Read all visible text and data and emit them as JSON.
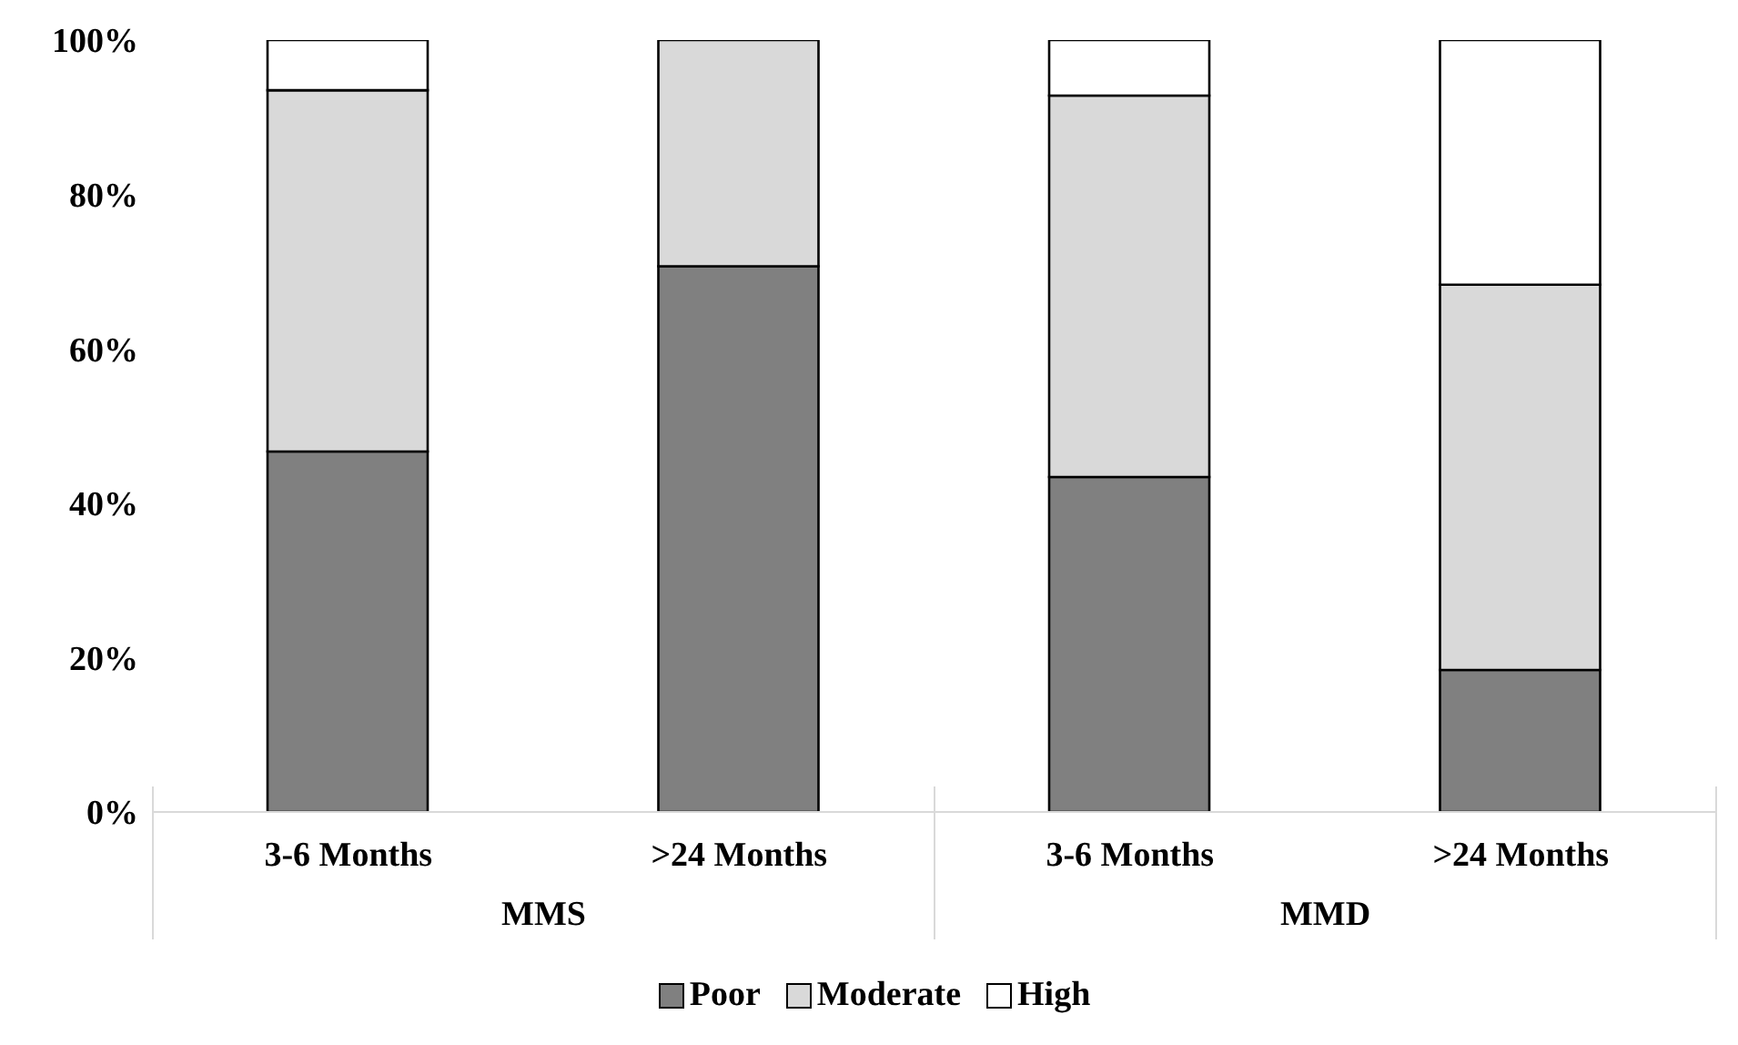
{
  "chart_data": {
    "type": "bar",
    "stacked": true,
    "categories": [
      "3-6 Months",
      ">24 Months",
      "3-6 Months",
      ">24 Months"
    ],
    "series": [
      {
        "name": "Poor",
        "color": "#808080",
        "values": [
          46.7,
          70.7,
          43.4,
          18.4
        ]
      },
      {
        "name": "Moderate",
        "color": "#d9d9d9",
        "values": [
          46.8,
          29.3,
          49.4,
          49.9
        ]
      },
      {
        "name": "High",
        "color": "#ffffff",
        "values": [
          6.5,
          0,
          7.2,
          31.7
        ]
      }
    ],
    "ylim": [
      0,
      100
    ],
    "yticks": [
      {
        "value": 0,
        "label": "0%"
      },
      {
        "value": 20,
        "label": "20%"
      },
      {
        "value": 40,
        "label": "40%"
      },
      {
        "value": 60,
        "label": "60%"
      },
      {
        "value": 80,
        "label": "80%"
      },
      {
        "value": 100,
        "label": "100%"
      }
    ],
    "annotations": [
      "MMS",
      "MMD"
    ],
    "legend": "bottom",
    "grid": false
  }
}
